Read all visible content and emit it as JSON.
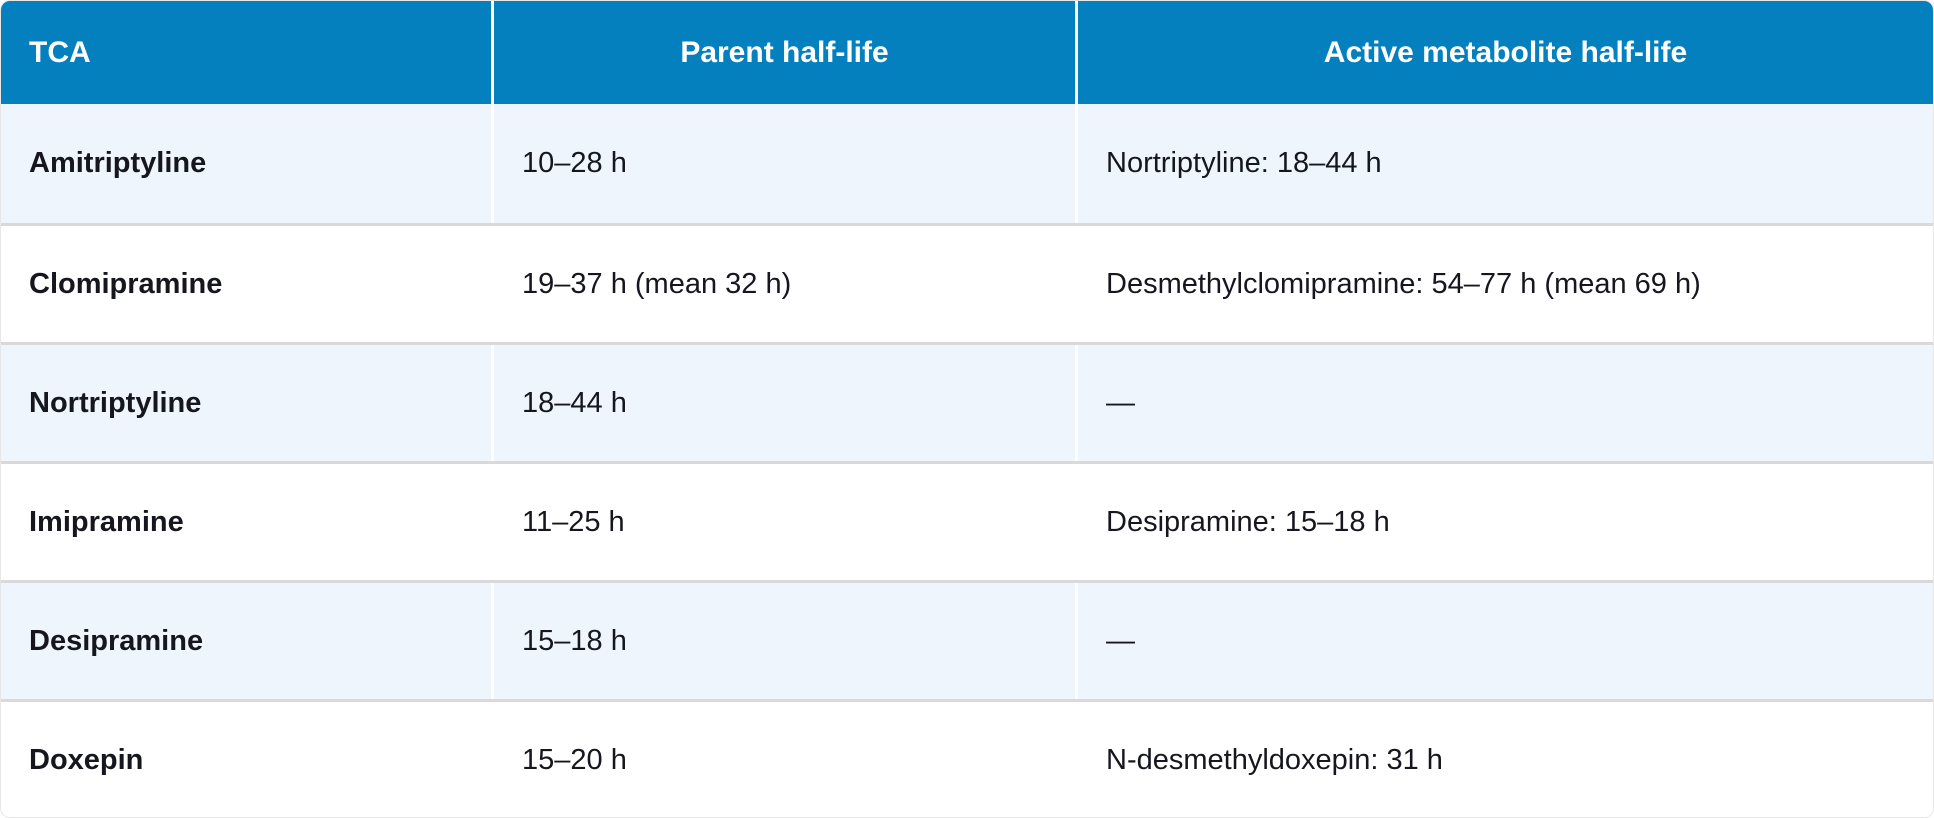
{
  "chart_data": {
    "type": "table",
    "columns": [
      "TCA",
      "Parent half-life",
      "Active metabolite half-life"
    ],
    "rows": [
      [
        "Amitriptyline",
        "10–28 h",
        "Nortriptyline: 18–44 h"
      ],
      [
        "Clomipramine",
        "19–37 h (mean 32 h)",
        "Desmethylclomipramine: 54–77 h (mean 69 h)"
      ],
      [
        "Nortriptyline",
        "18–44 h",
        "—"
      ],
      [
        "Imipramine",
        "11–25 h",
        "Desipramine: 15–18 h"
      ],
      [
        "Desipramine",
        "15–18 h",
        "—"
      ],
      [
        "Doxepin",
        "15–20 h",
        "N-desmethyldoxepin: 31 h"
      ]
    ]
  },
  "colors": {
    "header_bg": "#0580BE",
    "header_text": "#FFFFFF",
    "row_bg": "#FFFFFF",
    "row_alt_bg": "#EFF5FC",
    "divider": "#D9D9D9",
    "col_border": "#FFFFFF",
    "body_text": "#16161E"
  }
}
